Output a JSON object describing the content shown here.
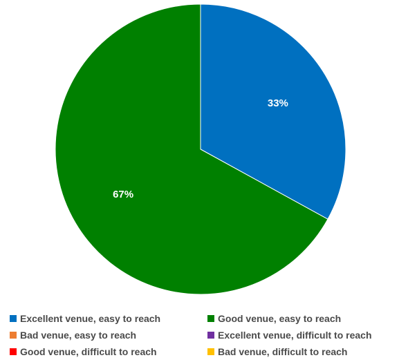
{
  "chart_data": {
    "type": "pie",
    "title": "",
    "slices": [
      {
        "name": "Excellent venue, easy to reach",
        "value": 33,
        "label": "33%",
        "color": "#0070C0"
      },
      {
        "name": "Good venue, easy to reach",
        "value": 67,
        "label": "67%",
        "color": "#008000"
      },
      {
        "name": "Bad venue, easy to reach",
        "value": 0,
        "label": "",
        "color": "#ED7D31"
      },
      {
        "name": "Excellent venue, difficult to reach",
        "value": 0,
        "label": "",
        "color": "#7030A0"
      },
      {
        "name": "Good venue, difficult to reach",
        "value": 0,
        "label": "",
        "color": "#FF0000"
      },
      {
        "name": "Bad venue, difficult to reach",
        "value": 0,
        "label": "",
        "color": "#FFC000"
      }
    ],
    "legend": {
      "position": "bottom",
      "order": [
        0,
        1,
        2,
        3,
        4,
        5
      ]
    }
  }
}
